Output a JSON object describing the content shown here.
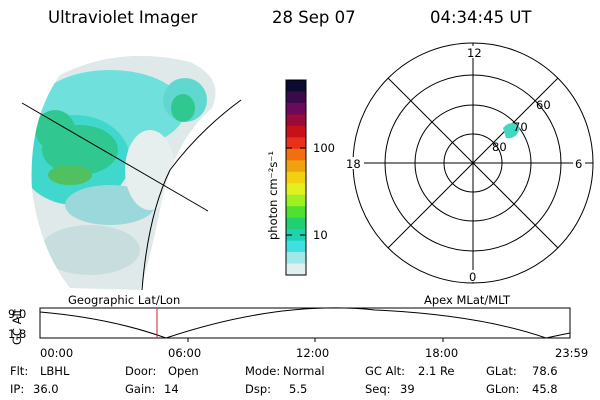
{
  "header": {
    "instrument": "Ultraviolet Imager",
    "date": "28 Sep 07",
    "time": "04:34:45 UT"
  },
  "colorbar": {
    "unit_label": "photon cm⁻²s⁻¹",
    "tick_labels": [
      "100",
      "10"
    ],
    "colors": [
      "#0b0a30",
      "#3a0a4a",
      "#6a0a5a",
      "#9a0a3a",
      "#c8101a",
      "#e8301a",
      "#f07010",
      "#f0a010",
      "#f0d010",
      "#e0f020",
      "#a0f020",
      "#50e030",
      "#20d070",
      "#20d0b0",
      "#40e0e0",
      "#a0e8e8",
      "#e0f0f0"
    ]
  },
  "polar_plot": {
    "mlt_labels": {
      "top": "12",
      "left": "18",
      "right": "6",
      "bottom": "0"
    },
    "lat_labels": [
      "60",
      "70",
      "80"
    ]
  },
  "altitude_strip": {
    "left_title": "Geographic Lat/Lon",
    "right_title": "Apex MLat/MLT",
    "y_label": "GC Alt",
    "y_ticks": [
      "9.0",
      "1.8"
    ],
    "x_ticks": [
      "00:00",
      "06:00",
      "12:00",
      "18:00",
      "23:59"
    ],
    "marker_time": "04:34:45"
  },
  "info": {
    "filter_label": "Flt:",
    "filter_value": "LBHL",
    "door_label": "Door:",
    "door_value": "Open",
    "mode_label": "Mode:",
    "mode_value": "Normal",
    "gcalt_label": "GC Alt:",
    "gcalt_value": "2.1 Re",
    "glat_label": "GLat:",
    "glat_value": "78.6",
    "ip_label": "IP:",
    "ip_value": "36.0",
    "gain_label": "Gain:",
    "gain_value": "14",
    "dsp_label": "Dsp:",
    "dsp_value": "5.5",
    "seq_label": "Seq:",
    "seq_value": "39",
    "glon_label": "GLon:",
    "glon_value": "45.8"
  },
  "colors": {
    "marker": "#cc2020",
    "line": "#000000"
  }
}
